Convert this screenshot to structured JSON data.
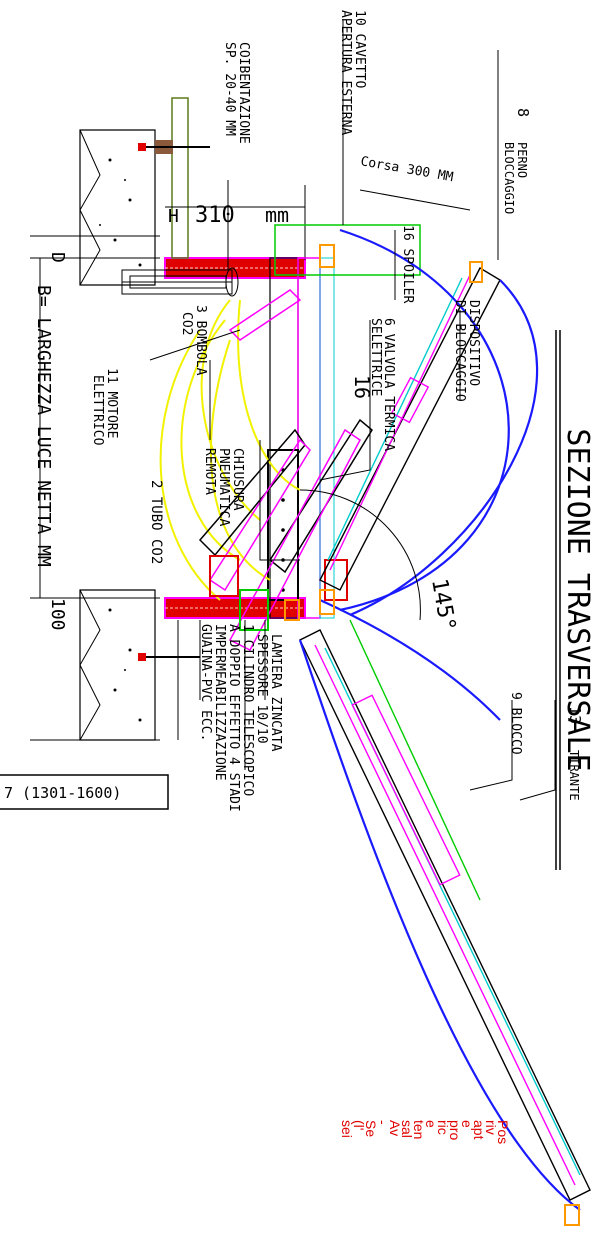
{
  "title": "SEZIONE TRASVERSALE",
  "labels": {
    "caption_coibentazione_1": "COIBENTAZIONE",
    "caption_coibentazione_2": "SP. 20-40 MM",
    "caption_cavetto_1": "10 CAVETTO",
    "caption_cavetto_2": "APERTURA ESTERNA",
    "caption_perno_num": "8",
    "caption_perno_1": "PERNO",
    "caption_perno_2": "BLOCCAGGIO",
    "caption_corsa": "Corsa 300 MM",
    "caption_h": "H",
    "caption_h_value": "310",
    "caption_h_unit": "mm",
    "caption_d": "D",
    "caption_spoiler": "16 SPOILER",
    "caption_dispositivo_1": "DISPOSITIVO",
    "caption_dispositivo_2": "DI BLOCCAGGIO",
    "caption_valvola_1": "6 VALVOLA TERMICA",
    "caption_valvola_2": "SELETTRICE",
    "caption_angle_16": "16",
    "caption_bombola_1": "3 BOMBOLA",
    "caption_bombola_2": "CO2",
    "caption_motore_1": "11 MOTORE",
    "caption_motore_2": "ELETTRICO",
    "caption_chiusura_1": "CHIUSURA",
    "caption_chiusura_2": "PNEUMATICA",
    "caption_chiusura_3": "REMOTA",
    "caption_tubo": "2 TUBO CO2",
    "caption_b": "B= LARGHEZZA LUCE NETTA MM",
    "caption_angle_145": "145°",
    "caption_100": "100",
    "caption_lamiera_1": "LAMIERA ZINCATA",
    "caption_lamiera_2": "SPESSORE 10/10",
    "caption_cilindro_1": "1 CILINDRO TELESCOPICO",
    "caption_cilindro_2": "A DOPPIO EFFETTO 4 STADI",
    "caption_impermeab_1": "IMPERMEABILIZZAZIONE",
    "caption_impermeab_2": "GUAINA-PVC ECC.",
    "caption_blocco": "9 BLOCCO",
    "caption_tirante_num": "13",
    "caption_tirante": "TIRANTE",
    "caption_range": "7 (1301-1600)"
  },
  "notes": [
    "Pos",
    "riv",
    "apt",
    "e",
    "pro",
    "ric",
    "e",
    "ten",
    "sal",
    "Av",
    "-",
    "Se",
    "(l'",
    "sei"
  ],
  "colors": {
    "ink": "#000000",
    "blue": "#1a1aff",
    "magenta": "#ff00ff",
    "yellow": "#f2f200",
    "red": "#e00000",
    "green": "#00cc00",
    "cyan": "#00cccc",
    "orange": "#ff9900",
    "olive": "#5a7a1a"
  }
}
